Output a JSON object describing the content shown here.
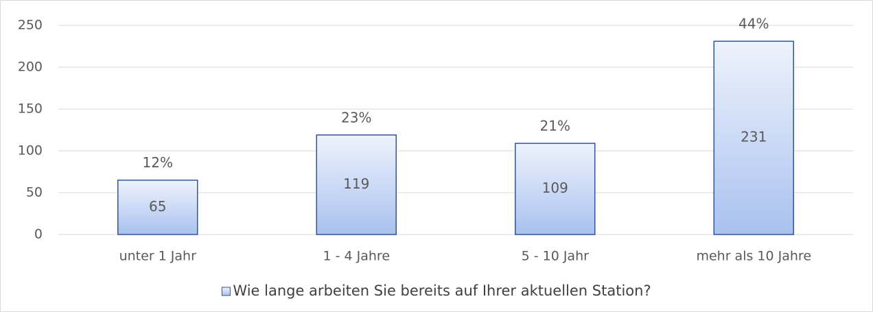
{
  "chart_data": {
    "type": "bar",
    "categories": [
      "unter 1 Jahr",
      "1 - 4 Jahre",
      "5 - 10 Jahr",
      "mehr als 10 Jahre"
    ],
    "series": [
      {
        "name": "Wie lange arbeiten Sie bereits auf Ihrer aktuellen Station?",
        "color": "#2f5597",
        "values": [
          65,
          119,
          109,
          231
        ]
      }
    ],
    "share_labels": [
      "12%",
      "23%",
      "21%",
      "44%"
    ],
    "ylim": [
      0,
      250
    ],
    "yticks": [
      0,
      50,
      100,
      150,
      200,
      250
    ],
    "grid": true,
    "legend": "bottom"
  }
}
